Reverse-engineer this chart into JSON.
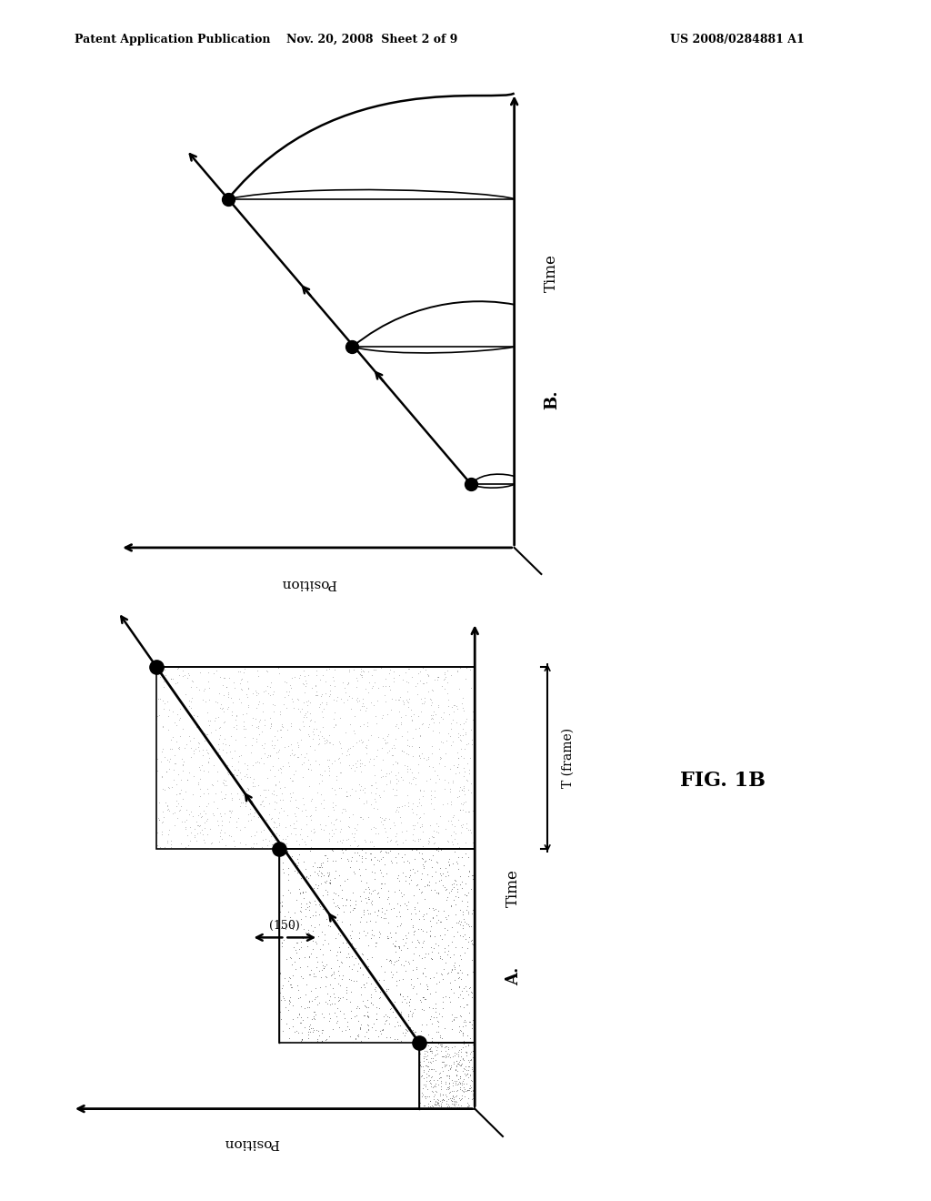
{
  "background_color": "#ffffff",
  "header_left": "Patent Application Publication",
  "header_mid": "Nov. 20, 2008  Sheet 2 of 9",
  "header_right": "US 2008/0284881 A1",
  "fig_label": "FIG. 1B"
}
